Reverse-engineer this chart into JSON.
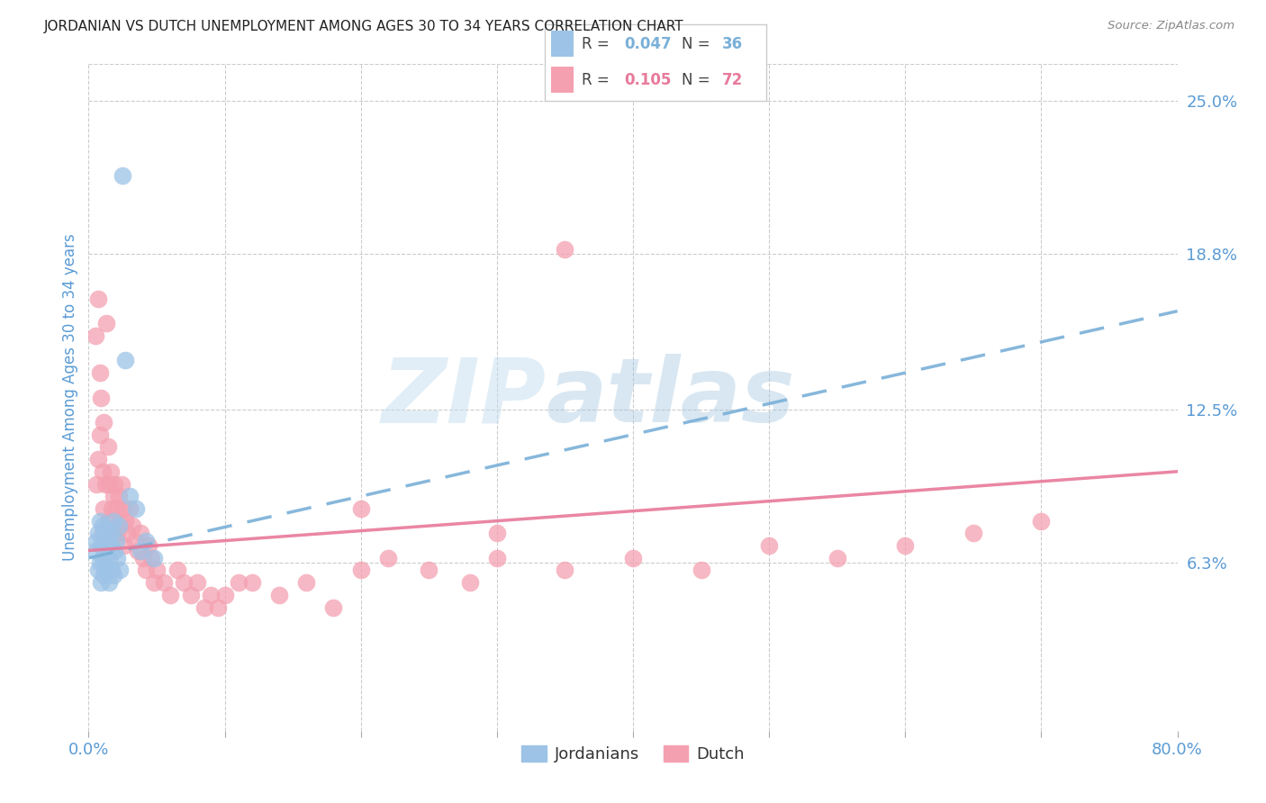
{
  "title": "JORDANIAN VS DUTCH UNEMPLOYMENT AMONG AGES 30 TO 34 YEARS CORRELATION CHART",
  "source": "Source: ZipAtlas.com",
  "ylabel": "Unemployment Among Ages 30 to 34 years",
  "xlim": [
    0.0,
    0.8
  ],
  "ylim": [
    -0.005,
    0.265
  ],
  "yticks_right": [
    0.063,
    0.125,
    0.188,
    0.25
  ],
  "yticklabels_right": [
    "6.3%",
    "12.5%",
    "18.8%",
    "25.0%"
  ],
  "watermark": "ZIPatlas",
  "title_color": "#222222",
  "source_color": "#888888",
  "tick_color": "#5b9bd5",
  "grid_color": "#cccccc",
  "blue_color": "#9dc3e6",
  "pink_color": "#f4a0b0",
  "blue_line_color": "#7ab0d8",
  "pink_line_color": "#e8799a",
  "blue_R": 0.047,
  "pink_R": 0.105,
  "blue_N": 36,
  "pink_N": 72,
  "jordanians_x": [
    0.005,
    0.006,
    0.007,
    0.007,
    0.008,
    0.008,
    0.009,
    0.009,
    0.01,
    0.01,
    0.011,
    0.011,
    0.012,
    0.012,
    0.013,
    0.013,
    0.014,
    0.015,
    0.015,
    0.016,
    0.016,
    0.017,
    0.018,
    0.019,
    0.02,
    0.021,
    0.022,
    0.023,
    0.025,
    0.027,
    0.03,
    0.035,
    0.038,
    0.042,
    0.048,
    0.018
  ],
  "jordanians_y": [
    0.068,
    0.072,
    0.06,
    0.075,
    0.063,
    0.08,
    0.055,
    0.07,
    0.065,
    0.078,
    0.058,
    0.073,
    0.062,
    0.077,
    0.06,
    0.068,
    0.072,
    0.055,
    0.065,
    0.07,
    0.075,
    0.06,
    0.08,
    0.068,
    0.072,
    0.065,
    0.078,
    0.06,
    0.22,
    0.145,
    0.09,
    0.085,
    0.068,
    0.072,
    0.065,
    0.058
  ],
  "dutch_x": [
    0.005,
    0.006,
    0.007,
    0.007,
    0.008,
    0.008,
    0.009,
    0.01,
    0.01,
    0.011,
    0.011,
    0.012,
    0.013,
    0.014,
    0.015,
    0.015,
    0.016,
    0.017,
    0.018,
    0.018,
    0.019,
    0.02,
    0.021,
    0.022,
    0.023,
    0.024,
    0.025,
    0.026,
    0.027,
    0.028,
    0.03,
    0.032,
    0.034,
    0.036,
    0.038,
    0.04,
    0.042,
    0.044,
    0.046,
    0.048,
    0.05,
    0.055,
    0.06,
    0.065,
    0.07,
    0.075,
    0.08,
    0.085,
    0.09,
    0.095,
    0.1,
    0.11,
    0.12,
    0.14,
    0.16,
    0.18,
    0.2,
    0.22,
    0.25,
    0.28,
    0.3,
    0.35,
    0.4,
    0.45,
    0.5,
    0.55,
    0.6,
    0.65,
    0.7,
    0.35,
    0.3,
    0.2
  ],
  "dutch_y": [
    0.155,
    0.095,
    0.17,
    0.105,
    0.14,
    0.115,
    0.13,
    0.075,
    0.1,
    0.12,
    0.085,
    0.095,
    0.16,
    0.11,
    0.08,
    0.095,
    0.1,
    0.085,
    0.075,
    0.09,
    0.095,
    0.085,
    0.075,
    0.09,
    0.08,
    0.095,
    0.085,
    0.07,
    0.08,
    0.075,
    0.085,
    0.078,
    0.072,
    0.068,
    0.075,
    0.065,
    0.06,
    0.07,
    0.065,
    0.055,
    0.06,
    0.055,
    0.05,
    0.06,
    0.055,
    0.05,
    0.055,
    0.045,
    0.05,
    0.045,
    0.05,
    0.055,
    0.055,
    0.05,
    0.055,
    0.045,
    0.06,
    0.065,
    0.06,
    0.055,
    0.065,
    0.06,
    0.065,
    0.06,
    0.07,
    0.065,
    0.07,
    0.075,
    0.08,
    0.19,
    0.075,
    0.085
  ]
}
